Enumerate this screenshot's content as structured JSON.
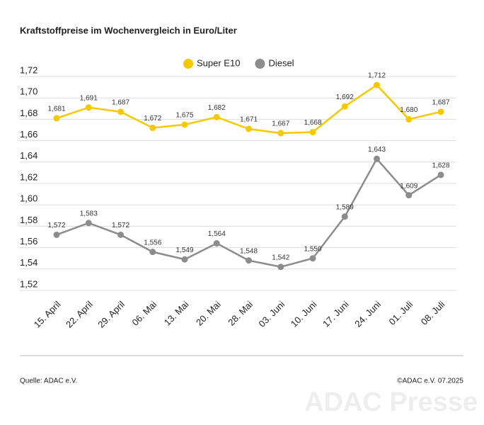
{
  "chart_data": {
    "type": "line",
    "title": "Kraftstoffpreise im Wochenvergleich in Euro/Liter",
    "categories": [
      "15. April",
      "22. April",
      "29. April",
      "06. Mai",
      "13. Mai",
      "20. Mai",
      "28. Mai",
      "03. Juni",
      "10. Juni",
      "17. Juni",
      "24. Juni",
      "01. Juli",
      "08. Juli"
    ],
    "series": [
      {
        "name": "Super E10",
        "color": "#f5c800",
        "values": [
          1.681,
          1.691,
          1.687,
          1.672,
          1.675,
          1.682,
          1.671,
          1.667,
          1.668,
          1.692,
          1.712,
          1.68,
          1.687
        ],
        "value_labels": [
          "1,681",
          "1,691",
          "1,687",
          "1,672",
          "1,675",
          "1,682",
          "1,671",
          "1,667",
          "1,668",
          "1,692",
          "1,712",
          "1,680",
          "1,687"
        ]
      },
      {
        "name": "Diesel",
        "color": "#8c8c8c",
        "values": [
          1.572,
          1.583,
          1.572,
          1.556,
          1.549,
          1.564,
          1.548,
          1.542,
          1.55,
          1.589,
          1.643,
          1.609,
          1.628
        ],
        "value_labels": [
          "1,572",
          "1,583",
          "1,572",
          "1,556",
          "1,549",
          "1,564",
          "1,548",
          "1,542",
          "1,550",
          "1,589",
          "1,643",
          "1,609",
          "1,628"
        ]
      }
    ],
    "ylim": [
      1.52,
      1.72
    ],
    "yticks": [
      {
        "value": 1.52,
        "label": "1,52"
      },
      {
        "value": 1.54,
        "label": "1,54"
      },
      {
        "value": 1.56,
        "label": "1,56"
      },
      {
        "value": 1.58,
        "label": "1,58"
      },
      {
        "value": 1.6,
        "label": "1,60"
      },
      {
        "value": 1.62,
        "label": "1,62"
      },
      {
        "value": 1.64,
        "label": "1,64"
      },
      {
        "value": 1.66,
        "label": "1,66"
      },
      {
        "value": 1.68,
        "label": "1,68"
      },
      {
        "value": 1.7,
        "label": "1,70"
      },
      {
        "value": 1.72,
        "label": "1,72"
      }
    ],
    "grid": true,
    "legend": "top",
    "source": "Quelle: ADAC e.V.",
    "copyright": "©ADAC e.V. 07.2025",
    "watermark": "ADAC Presse"
  }
}
